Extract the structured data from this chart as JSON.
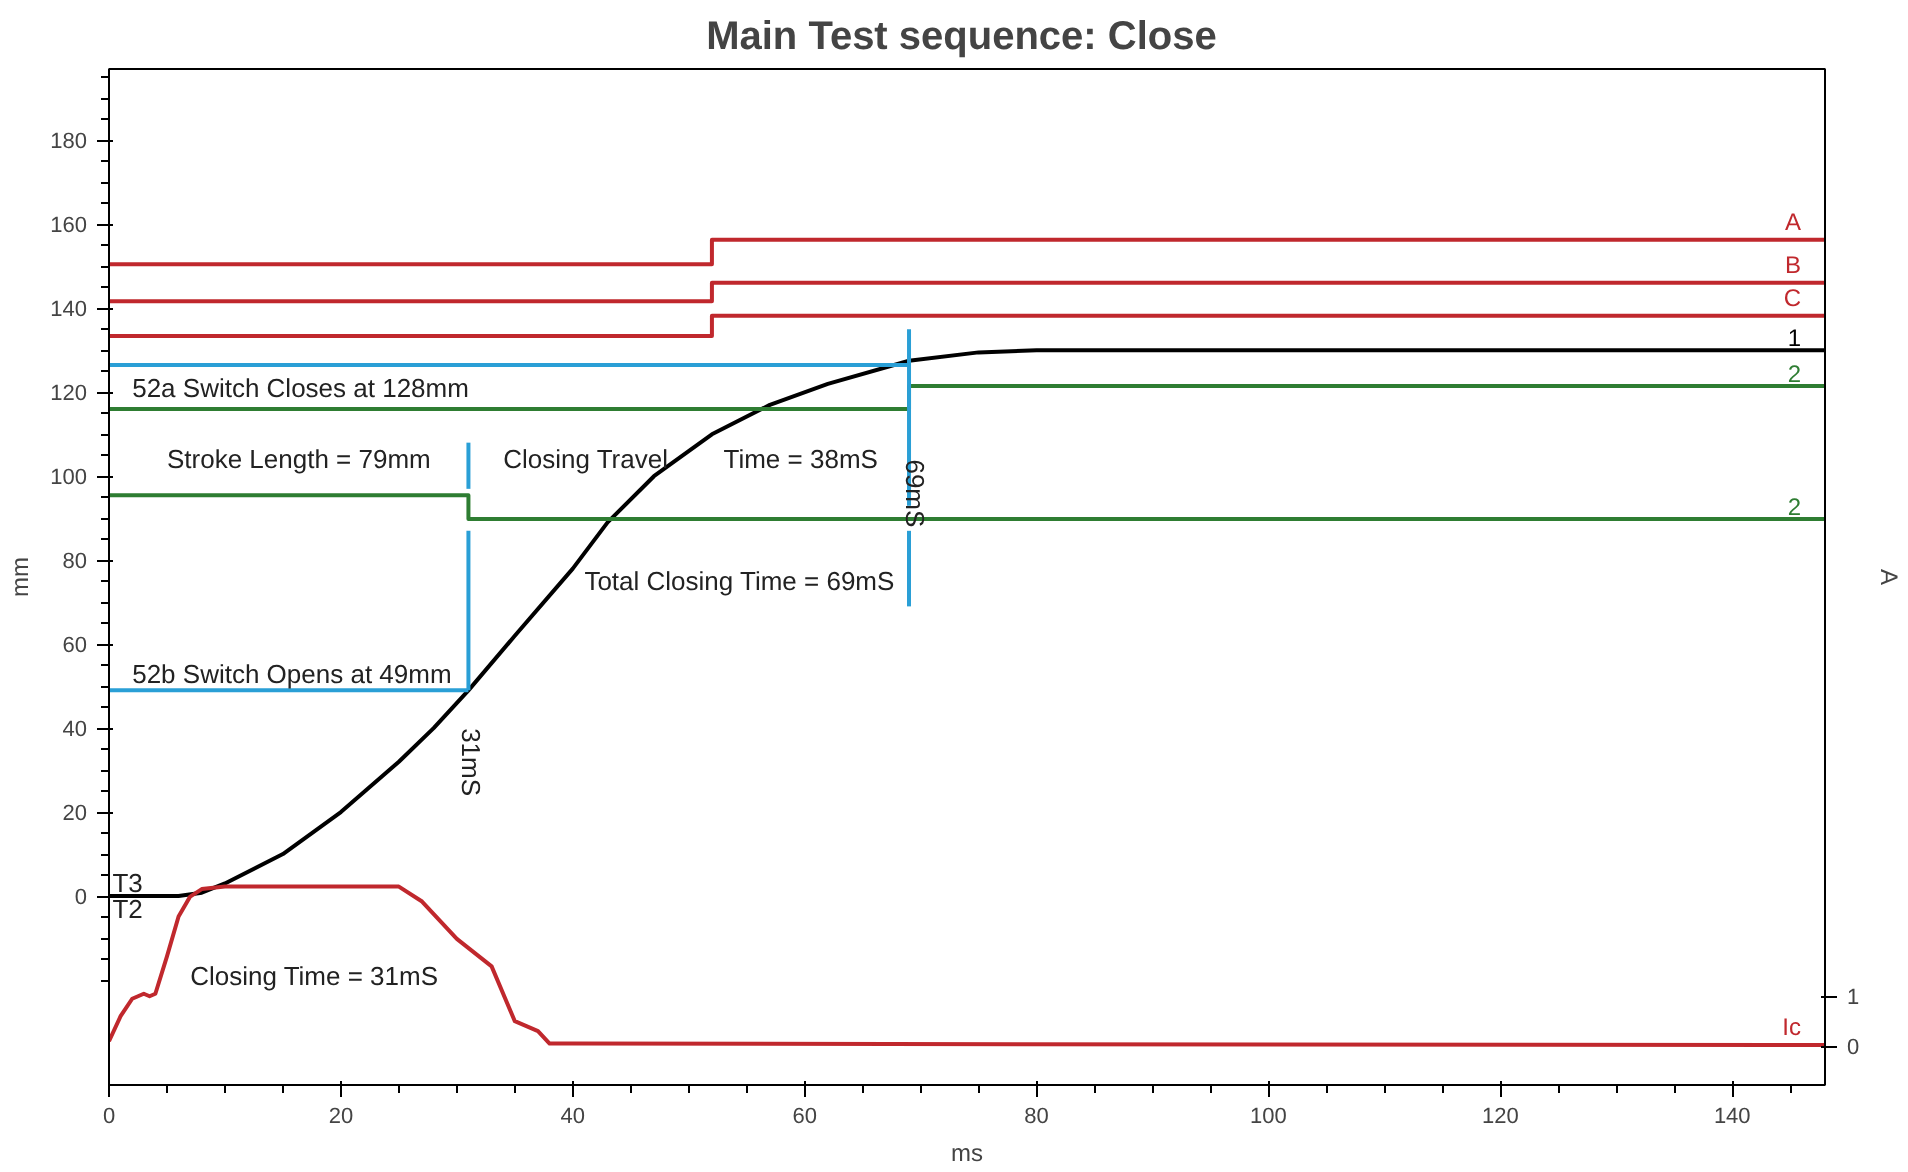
{
  "chart_data": {
    "type": "line",
    "title": "Main Test sequence:  Close",
    "xlabel": "ms",
    "ylabel": "mm",
    "y2label": "A",
    "xlim": [
      0,
      148
    ],
    "xticks": [
      0,
      20,
      40,
      60,
      80,
      100,
      120,
      140
    ],
    "ylim": [
      -45,
      197
    ],
    "yticks": [
      0,
      20,
      40,
      60,
      80,
      100,
      120,
      140,
      160,
      180
    ],
    "y2lim": [
      -0.78,
      19.6
    ],
    "y2ticks": [
      0,
      1
    ],
    "grid": false,
    "line_style": "solid",
    "series": [
      {
        "name": "A",
        "color": "#c0282d",
        "x": [
          0,
          52,
          52,
          148
        ],
        "values": [
          150.5,
          150.5,
          156.3,
          156.3
        ]
      },
      {
        "name": "B",
        "color": "#c0282d",
        "x": [
          0,
          52,
          52,
          148
        ],
        "values": [
          141.7,
          141.7,
          146.1,
          146.1
        ]
      },
      {
        "name": "C",
        "color": "#c0282d",
        "x": [
          0,
          52,
          52,
          148
        ],
        "values": [
          133.4,
          133.4,
          138.2,
          138.2
        ]
      },
      {
        "name": "1",
        "color": "#000000",
        "x": [
          0,
          6,
          8,
          10,
          15,
          20,
          25,
          28,
          31,
          35,
          40,
          43,
          47,
          52,
          57,
          62,
          69,
          75,
          80,
          148
        ],
        "values": [
          0,
          0,
          0.8,
          3,
          10,
          20,
          32,
          40,
          49,
          62,
          78,
          89,
          100,
          110,
          117,
          122,
          127.5,
          129.5,
          130,
          130
        ]
      },
      {
        "name": "2",
        "color": "#2e7d32",
        "x": [
          0,
          69,
          69,
          148
        ],
        "values": [
          116,
          116,
          121.5,
          121.5
        ]
      },
      {
        "name": "2",
        "color": "#2e7d32",
        "x": [
          0,
          31,
          31,
          148
        ],
        "values": [
          95.5,
          95.5,
          89.8,
          89.8
        ]
      },
      {
        "color": "#2a9fd6",
        "x": [
          0,
          69
        ],
        "values": [
          126.5,
          126.5
        ]
      },
      {
        "color": "#2a9fd6",
        "x": [
          0,
          31
        ],
        "values": [
          49,
          49
        ]
      },
      {
        "color": "#2a9fd6",
        "x": [
          31,
          31
        ],
        "values": [
          108,
          97
        ]
      },
      {
        "color": "#2a9fd6",
        "x": [
          31,
          31
        ],
        "values": [
          87,
          49
        ]
      },
      {
        "color": "#2a9fd6",
        "x": [
          69,
          69
        ],
        "values": [
          135,
          93
        ]
      },
      {
        "color": "#2a9fd6",
        "x": [
          69,
          69
        ],
        "values": [
          87,
          69
        ]
      },
      {
        "name": "Ic",
        "color": "#c0282d",
        "axis": "y2",
        "x": [
          0,
          1,
          2,
          3,
          3.5,
          4,
          5,
          6,
          7,
          8,
          10,
          25,
          27,
          30,
          33,
          35,
          36,
          37,
          38,
          40,
          148
        ],
        "values": [
          0.1,
          0.6,
          0.95,
          1.05,
          1.0,
          1.05,
          1.8,
          2.6,
          3.0,
          3.15,
          3.2,
          3.2,
          2.9,
          2.15,
          1.6,
          0.5,
          0.4,
          0.3,
          0.05,
          0.05,
          0.02
        ]
      }
    ],
    "annotations": [
      "52a Switch Closes at 128mm",
      "Stroke Length = 79mm",
      "Closing Travel",
      "Time = 38mS",
      "69mS",
      "Total Closing Time = 69mS",
      "52b Switch Opens at 49mm",
      "31mS",
      "Closing Time = 31mS",
      "T3",
      "T2"
    ]
  }
}
